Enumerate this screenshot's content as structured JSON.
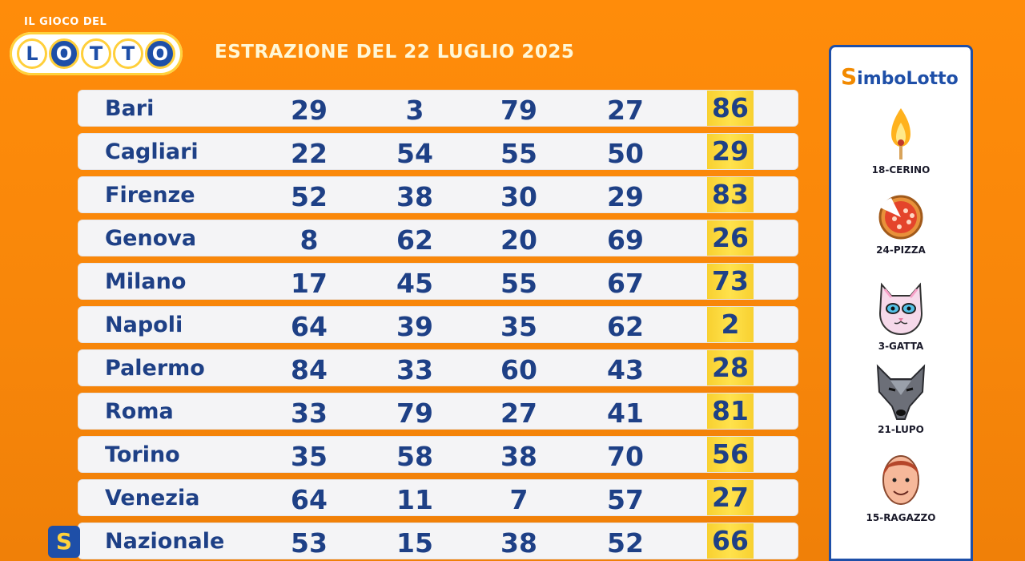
{
  "logo": {
    "top_text": "IL GIOCO DEL",
    "letters": [
      "L",
      "O",
      "T",
      "T",
      "O"
    ]
  },
  "title": "ESTRAZIONE DEL 22 LUGLIO 2025",
  "draws": [
    {
      "city": "Bari",
      "numbers": [
        "29",
        "3",
        "79",
        "27",
        "86"
      ]
    },
    {
      "city": "Cagliari",
      "numbers": [
        "22",
        "54",
        "55",
        "50",
        "29"
      ]
    },
    {
      "city": "Firenze",
      "numbers": [
        "52",
        "38",
        "30",
        "29",
        "83"
      ]
    },
    {
      "city": "Genova",
      "numbers": [
        "8",
        "62",
        "20",
        "69",
        "26"
      ]
    },
    {
      "city": "Milano",
      "numbers": [
        "17",
        "45",
        "55",
        "67",
        "73"
      ]
    },
    {
      "city": "Napoli",
      "numbers": [
        "64",
        "39",
        "35",
        "62",
        "2"
      ]
    },
    {
      "city": "Palermo",
      "numbers": [
        "84",
        "33",
        "60",
        "43",
        "28"
      ]
    },
    {
      "city": "Roma",
      "numbers": [
        "33",
        "79",
        "27",
        "41",
        "81"
      ]
    },
    {
      "city": "Torino",
      "numbers": [
        "35",
        "58",
        "38",
        "70",
        "56"
      ]
    },
    {
      "city": "Venezia",
      "numbers": [
        "64",
        "11",
        "7",
        "57",
        "27"
      ]
    },
    {
      "city": "Nazionale",
      "numbers": [
        "53",
        "15",
        "38",
        "52",
        "66"
      ]
    }
  ],
  "nazionale_badge": "S",
  "simbolotto": {
    "title_s": "S",
    "title_rest": "imboLotto",
    "symbols": [
      {
        "label": "18-CERINO",
        "icon": "match-flame-icon"
      },
      {
        "label": "24-PIZZA",
        "icon": "pizza-icon"
      },
      {
        "label": "3-GATTA",
        "icon": "cat-icon"
      },
      {
        "label": "21-LUPO",
        "icon": "wolf-icon"
      },
      {
        "label": "15-RAGAZZO",
        "icon": "boy-face-icon"
      }
    ]
  },
  "colors": {
    "background": "#ff8c0a",
    "text_blue": "#1e4086",
    "highlight_yellow": "#ffe24c"
  }
}
